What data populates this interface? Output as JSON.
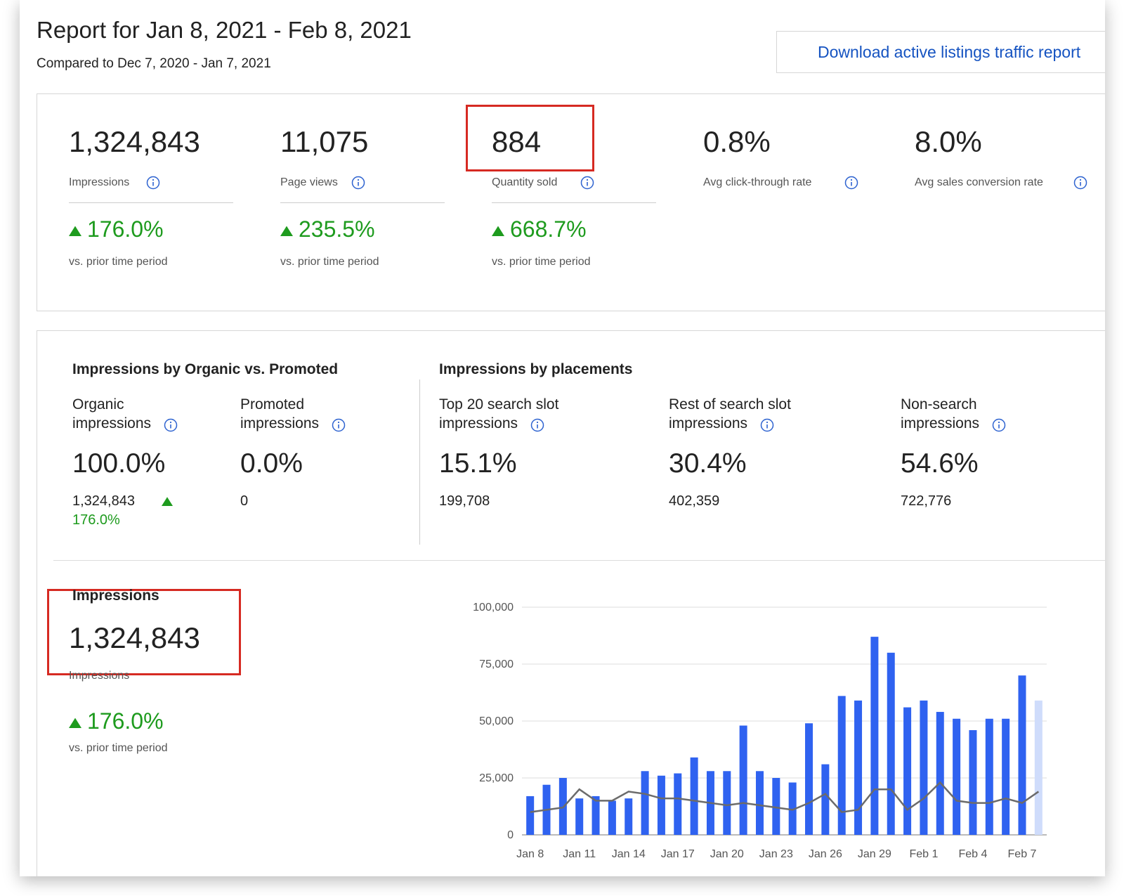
{
  "header": {
    "title": "Report for Jan 8, 2021 - Feb 8, 2021",
    "subtitle": "Compared to Dec 7, 2020 - Jan 7, 2021",
    "download_link": "Download active listings traffic report"
  },
  "kpis": [
    {
      "value": "1,324,843",
      "label": "Impressions",
      "change": "176.0%",
      "note": "vs. prior time period"
    },
    {
      "value": "11,075",
      "label": "Page views",
      "change": "235.5%",
      "note": "vs. prior time period"
    },
    {
      "value": "884",
      "label": "Quantity sold",
      "change": "668.7%",
      "note": "vs. prior time period"
    },
    {
      "value": "0.8%",
      "label": "Avg click-through rate"
    },
    {
      "value": "8.0%",
      "label": "Avg sales conversion rate"
    }
  ],
  "organic": {
    "title": "Impressions by Organic vs. Promoted",
    "items": [
      {
        "label": [
          "Organic",
          "impressions"
        ],
        "percent": "100.0%",
        "count": "1,324,843",
        "change": "176.0%"
      },
      {
        "label": [
          "Promoted",
          "impressions"
        ],
        "percent": "0.0%",
        "count": "0"
      }
    ]
  },
  "placements": {
    "title": "Impressions by placements",
    "items": [
      {
        "label": [
          "Top 20 search slot",
          "impressions"
        ],
        "percent": "15.1%",
        "count": "199,708"
      },
      {
        "label": [
          "Rest of search slot",
          "impressions"
        ],
        "percent": "30.4%",
        "count": "402,359"
      },
      {
        "label": [
          "Non-search",
          "impressions"
        ],
        "percent": "54.6%",
        "count": "722,776"
      }
    ]
  },
  "impressions_panel": {
    "title": "Impressions",
    "value": "1,324,843",
    "label": "Impressions",
    "change": "176.0%",
    "note": "vs. prior time period"
  },
  "chart_data": {
    "type": "bar",
    "categories": [
      "Jan 8",
      null,
      null,
      "Jan 11",
      null,
      null,
      "Jan 14",
      null,
      null,
      "Jan 17",
      null,
      null,
      "Jan 20",
      null,
      null,
      "Jan 23",
      null,
      null,
      "Jan 26",
      null,
      null,
      "Jan 29",
      null,
      null,
      "Feb 1",
      null,
      null,
      "Feb 4",
      null,
      null,
      "Feb 7",
      null
    ],
    "series": [
      {
        "type": "bar",
        "color": "#2f62f0",
        "partial_color": "#cfdcfb",
        "values": [
          17000,
          22000,
          25000,
          16000,
          17000,
          15000,
          16000,
          28000,
          26000,
          27000,
          34000,
          28000,
          28000,
          48000,
          28000,
          25000,
          23000,
          49000,
          31000,
          61000,
          59000,
          87000,
          80000,
          56000,
          59000,
          54000,
          51000,
          46000,
          51000,
          51000,
          70000,
          59000
        ]
      },
      {
        "type": "line",
        "color": "#6b6b6b",
        "values": [
          10000,
          11000,
          12000,
          20000,
          15000,
          15000,
          19000,
          18000,
          16000,
          16000,
          15000,
          14000,
          13000,
          14000,
          13000,
          12000,
          11000,
          14000,
          18000,
          10000,
          11000,
          20000,
          20000,
          11000,
          16000,
          23000,
          15000,
          14000,
          14000,
          16000,
          14000,
          19000
        ]
      }
    ],
    "ylim": [
      0,
      100000
    ],
    "yticks": [
      0,
      {
        "value": 25000,
        "label": "25,000"
      },
      {
        "value": 50000,
        "label": "50,000"
      },
      {
        "value": 75000,
        "label": "75,000"
      },
      {
        "value": 100000,
        "label": "100,000"
      }
    ],
    "grid": true
  }
}
